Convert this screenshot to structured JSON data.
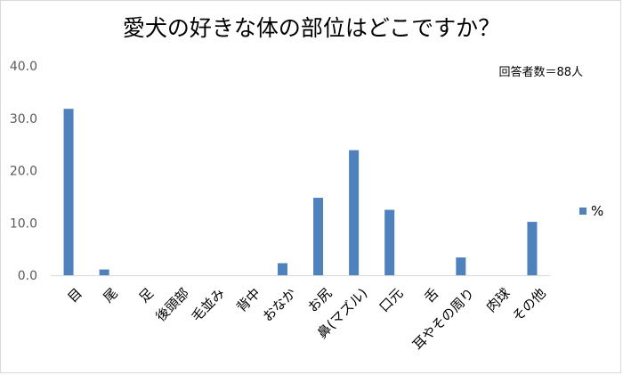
{
  "chart_data": {
    "type": "bar",
    "title": "愛犬の好きな体の部位はどこですか？",
    "note": "回答者数＝88人",
    "categories": [
      "目",
      "尾",
      "足",
      "後頭部",
      "毛並み",
      "背中",
      "おなか",
      "お尻",
      "鼻(マズル)",
      "口元",
      "舌",
      "耳やその周り",
      "肉球",
      "その他"
    ],
    "series": [
      {
        "name": "%",
        "values": [
          31.8,
          1.1,
          0,
          0,
          0,
          0,
          2.3,
          14.8,
          23.9,
          12.5,
          0,
          3.4,
          0,
          10.2
        ]
      }
    ],
    "y_ticks": [
      "0.0",
      "10.0",
      "20.0",
      "30.0",
      "40.0"
    ],
    "ylim": [
      0,
      40
    ],
    "grid": false,
    "legend_position": "right",
    "bar_color": "#4f81bd"
  }
}
